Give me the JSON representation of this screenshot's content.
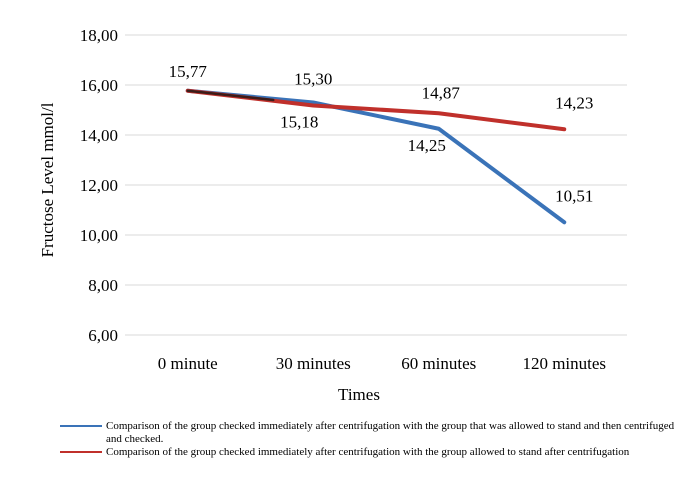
{
  "chart_data": {
    "type": "line",
    "categories": [
      "0 minute",
      "30 minutes",
      "60 minutes",
      "120 minutes"
    ],
    "ylabel": "Fructose Level mmol/l",
    "xlabel": "Times",
    "ylim": [
      6,
      18
    ],
    "yticks": [
      "6,00",
      "8,00",
      "10,00",
      "12,00",
      "14,00",
      "16,00",
      "18,00"
    ],
    "grid": true,
    "legend_position": "bottom",
    "series": [
      {
        "name": "Comparison of the group checked immediately after centrifugation with the group that was allowed to stand and then centrifuged and checked.",
        "color": "#3a73b8",
        "values": [
          15.77,
          15.3,
          14.25,
          10.51
        ],
        "labels": [
          "15,77",
          "15,30",
          "14,25",
          "10,51"
        ]
      },
      {
        "name": "Comparison of the group checked immediately after centrifugation with the group allowed to stand after centrifugation",
        "color": "#c0302b",
        "values": [
          15.77,
          15.18,
          14.87,
          14.23
        ],
        "labels": [
          "",
          "15,18",
          "14,87",
          "14,23"
        ]
      }
    ]
  }
}
